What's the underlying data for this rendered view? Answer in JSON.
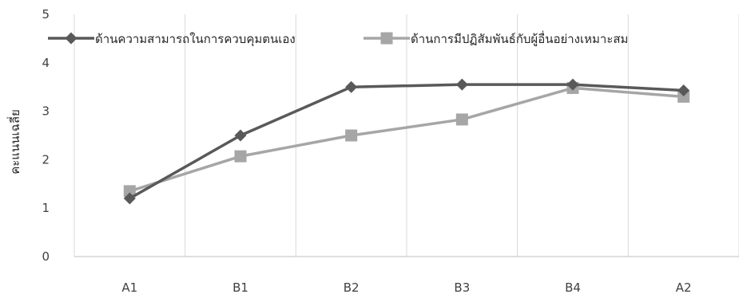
{
  "chart_data": {
    "type": "line",
    "title": "",
    "xlabel": "",
    "ylabel": "คะแนนเฉลี่ย",
    "categories": [
      "A1",
      "B1",
      "B2",
      "B3",
      "B4",
      "A2"
    ],
    "ylim": [
      0,
      5
    ],
    "yticks": [
      0,
      1,
      2,
      3,
      4,
      5
    ],
    "grid": "vertical lines between categories",
    "legend_position": "top",
    "series": [
      {
        "name": "ด้านความสามารถในการควบคุมตนเอง",
        "values": [
          1.2,
          2.5,
          3.5,
          3.55,
          3.55,
          3.43
        ],
        "color": "#595959",
        "marker": "diamond"
      },
      {
        "name": "ด้านการมีปฏิสัมพันธ์กับผู้อื่นอย่างเหมาะสม",
        "values": [
          1.35,
          2.07,
          2.5,
          2.83,
          3.48,
          3.3
        ],
        "color": "#A6A6A6",
        "marker": "square"
      }
    ]
  }
}
